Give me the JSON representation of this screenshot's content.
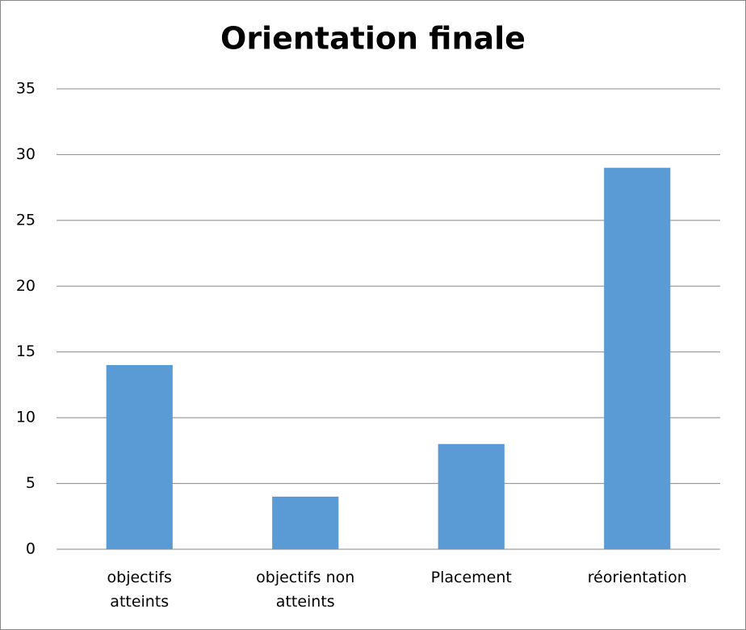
{
  "chart_data": {
    "type": "bar",
    "title": "Orientation finale",
    "categories": [
      "objectifs atteints",
      "objectifs non atteints",
      "Placement",
      "réorientation"
    ],
    "values": [
      14,
      4,
      8,
      29
    ],
    "color": "#5b9bd5",
    "ylim": [
      0,
      35
    ],
    "yticks": [
      0,
      5,
      10,
      15,
      20,
      25,
      30,
      35
    ],
    "grid": true
  }
}
